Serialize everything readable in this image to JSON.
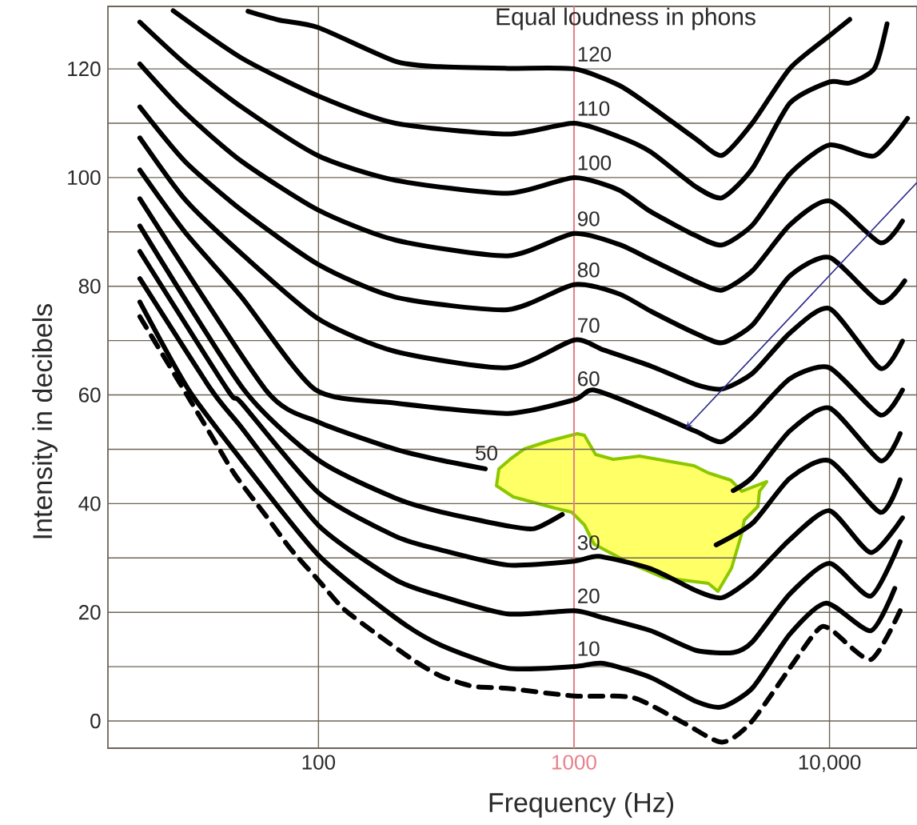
{
  "chart_data": {
    "type": "line",
    "title": "Equal loudness in phons",
    "xlabel": "Frequency (Hz)",
    "ylabel": "Intensity in decibels",
    "log": "x",
    "grid": true,
    "marker": "none",
    "line_style": "solid",
    "xlim": [
      15,
      22000
    ],
    "ylim": [
      -5,
      131.5
    ],
    "xticks": [
      100,
      1000,
      {
        "value": 10000,
        "label": "10,000"
      }
    ],
    "yticks": [
      0,
      {
        "value": 10,
        "label": null
      },
      20,
      {
        "value": 30,
        "label": null
      },
      40,
      {
        "value": 50,
        "label": null
      },
      60,
      {
        "value": 70,
        "label": null
      },
      80,
      {
        "value": 90,
        "label": null
      },
      100,
      {
        "value": 110,
        "label": null
      },
      120
    ],
    "ref_lines": [
      {
        "axis": "x",
        "value": 1000,
        "color": "#e8808a"
      }
    ],
    "series": [
      {
        "color": "#000000",
        "line_style": "dashed",
        "x": [
          20,
          38,
          47,
          62,
          78,
          100,
          125,
          170,
          237,
          300,
          400,
          550,
          1000,
          1700,
          2700,
          3800,
          5000,
          8700,
          10000,
          14500,
          18900
        ],
        "values": [
          74.4,
          52.6,
          45.4,
          37.9,
          31.6,
          25.9,
          20.7,
          15.9,
          11.1,
          8.3,
          6.4,
          6,
          4.6,
          4.3,
          -0.4,
          -3.9,
          0.1,
          16,
          17,
          11.3,
          20.3
        ]
      },
      {
        "name": "10",
        "color": "#000000",
        "x": [
          20,
          31,
          50,
          100,
          200,
          300,
          550,
          1000,
          1300,
          2000,
          3000,
          3800,
          5000,
          7000,
          9700,
          14500,
          18000
        ],
        "values": [
          77.1,
          61,
          48,
          30.5,
          19,
          14,
          9.7,
          10,
          10.6,
          8,
          3.6,
          2.6,
          6.1,
          16,
          21.7,
          16.6,
          24.4
        ]
      },
      {
        "name": "20",
        "color": "#000000",
        "x": [
          20,
          38,
          50,
          100,
          200,
          300,
          550,
          1000,
          1300,
          2000,
          3000,
          4200,
          5000,
          7000,
          10000,
          14500,
          18900
        ],
        "values": [
          81.4,
          61,
          54,
          36,
          26,
          23,
          19.7,
          20.3,
          19,
          16.6,
          13,
          12.6,
          14.6,
          23.4,
          29,
          23,
          33
        ]
      },
      {
        "name": "30",
        "color": "#000000",
        "x": [
          20,
          44,
          50,
          100,
          200,
          300,
          550,
          1000,
          1250,
          2000,
          3000,
          3800,
          5000,
          7000,
          10000,
          14500,
          19300
        ],
        "values": [
          86.4,
          61,
          58.5,
          42,
          34,
          31.5,
          28.7,
          29.4,
          30.3,
          28,
          24,
          22.7,
          26.4,
          33.4,
          38.7,
          31,
          37.4
        ]
      },
      {
        "color": "#000000",
        "x": [
          20,
          51,
          100,
          200,
          300,
          550,
          700,
          900,
          2000,
          3600,
          5000,
          7000,
          10000,
          15800,
          18900
        ],
        "values": [
          91.1,
          61,
          48,
          41,
          38.5,
          35.9,
          35.4,
          38,
          null,
          32.4,
          36.4,
          44.7,
          47.9,
          38.4,
          44.4
        ]
      },
      {
        "name": "50",
        "color": "#000000",
        "x": [
          20,
          62,
          100,
          200,
          300,
          450,
          1000,
          4200,
          5000,
          7000,
          10000,
          15800,
          18900
        ],
        "values": [
          96.1,
          61,
          55,
          50,
          48,
          46.4,
          null,
          42.4,
          44.9,
          53.4,
          57.6,
          47.9,
          52.9
        ]
      },
      {
        "name": "60",
        "color": "#000000",
        "x": [
          20,
          30,
          50,
          97,
          200,
          550,
          1000,
          1200,
          2000,
          3000,
          3800,
          5000,
          7000,
          10000,
          15800,
          19300
        ],
        "values": [
          101.4,
          90,
          78,
          61,
          58.5,
          56.6,
          59.1,
          60.9,
          56.9,
          53.3,
          51.4,
          55.9,
          63,
          65,
          56.3,
          60.9
        ]
      },
      {
        "name": "70",
        "color": "#000000",
        "x": [
          20,
          30,
          50,
          100,
          200,
          550,
          1000,
          1300,
          2000,
          3000,
          3800,
          5000,
          7000,
          10000,
          15800,
          19300
        ],
        "values": [
          107.3,
          96,
          86,
          74,
          68,
          65,
          70.1,
          68.3,
          65.3,
          61.9,
          61.1,
          64,
          71.4,
          75.9,
          64.9,
          69.9
        ]
      },
      {
        "name": "80",
        "color": "#000000",
        "x": [
          20,
          30,
          50,
          100,
          200,
          550,
          1000,
          1500,
          2000,
          3000,
          3800,
          5000,
          7000,
          10000,
          15800,
          19700
        ],
        "values": [
          113,
          103,
          94,
          84,
          78,
          75.7,
          80.3,
          78.6,
          75.4,
          71.3,
          69.6,
          72.9,
          81.9,
          85.3,
          77,
          81
        ]
      },
      {
        "name": "90",
        "color": "#000000",
        "x": [
          20,
          30,
          50,
          100,
          200,
          550,
          1000,
          1500,
          2000,
          3000,
          3800,
          5000,
          7000,
          10000,
          15800,
          19300
        ],
        "values": [
          120.9,
          112,
          103,
          94,
          88.5,
          85.6,
          89.7,
          87.7,
          84.9,
          80.9,
          79.3,
          82.9,
          91.3,
          95.7,
          88,
          92
        ]
      },
      {
        "name": "100",
        "color": "#000000",
        "x": [
          20,
          30,
          50,
          100,
          200,
          550,
          1000,
          1500,
          2000,
          3000,
          3800,
          5000,
          7000,
          10000,
          15000,
          20200
        ],
        "values": [
          128.6,
          121,
          113,
          104,
          99.5,
          97.1,
          100,
          97.7,
          93.7,
          89.3,
          87.6,
          91.3,
          100.7,
          106,
          104,
          110.9
        ]
      },
      {
        "name": "110",
        "color": "#000000",
        "x": [
          27,
          50,
          100,
          200,
          550,
          1000,
          1500,
          2000,
          3000,
          3800,
          5000,
          7000,
          10000,
          12000,
          15000,
          16800
        ],
        "values": [
          130.7,
          122,
          115,
          110,
          108,
          110,
          107.5,
          104.7,
          98.3,
          96.3,
          101.7,
          113.7,
          117.6,
          117.4,
          120.1,
          128.3
        ]
      },
      {
        "name": "120",
        "color": "#000000",
        "x": [
          53,
          70,
          100,
          200,
          300,
          550,
          1000,
          1500,
          2000,
          3000,
          3800,
          5000,
          7000,
          10000,
          12000
        ],
        "values": [
          130.6,
          129,
          127.6,
          121.4,
          120.4,
          120.1,
          120,
          117,
          113.1,
          107.1,
          104.1,
          110.1,
          120.1,
          126.1,
          129.1
        ]
      }
    ]
  }
}
